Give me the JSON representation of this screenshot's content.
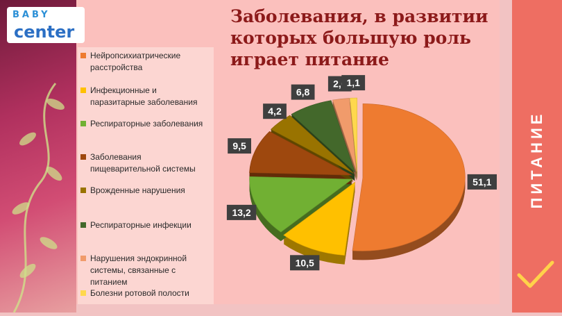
{
  "slide": {
    "title": "Заболевания, в развитии которых большую роль играет питание",
    "side_label": "ПИТАНИЕ",
    "logo_top": "BABY",
    "logo_bottom": "center"
  },
  "colors": {
    "accent": "#ee6e62",
    "title": "#8c1a1a"
  },
  "icons": {
    "check": "check-icon",
    "decor": "leaf-decoration"
  },
  "chart_data": {
    "type": "pie",
    "title": "",
    "legend_position": "left",
    "categories": [
      "Нейропсихиатрические расстройства",
      "Инфекционные и паразитарные заболевания",
      "Респираторные заболевания",
      "Заболевания пищеварительной системы",
      "Врожденные нарушения",
      "Респираторные инфекции",
      "Нарушения эндокринной системы, связанные с питанием",
      "Болезни ротовой полости"
    ],
    "values": [
      51.1,
      10.5,
      13.2,
      9.5,
      4.2,
      6.8,
      2.6,
      1.1
    ],
    "labels": [
      "51,1",
      "10,5",
      "13,2",
      "9,5",
      "4,2",
      "6,8",
      "2,6",
      "1,1"
    ],
    "colors": [
      "#ee7b30",
      "#ffc000",
      "#71b033",
      "#9e480e",
      "#997300",
      "#43682b",
      "#f19b6b",
      "#ffd84d"
    ]
  }
}
